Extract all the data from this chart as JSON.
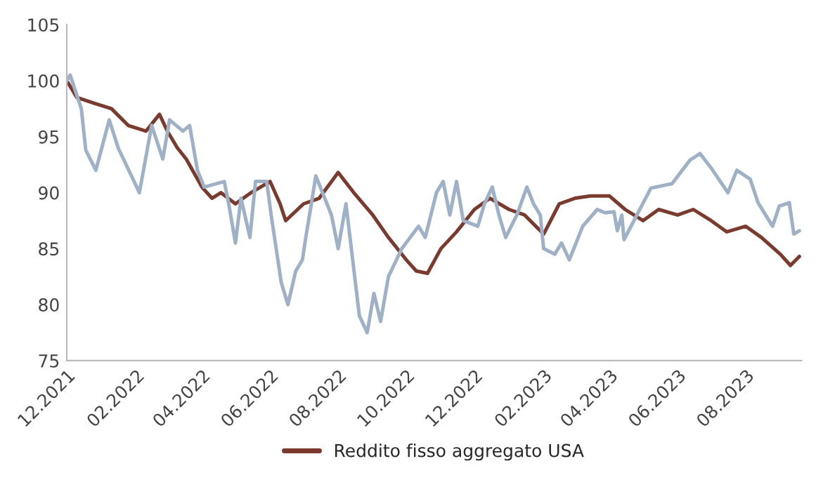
{
  "chart_data": {
    "type": "line",
    "xlim": [
      "2021-12-01",
      "2023-09-20"
    ],
    "xticks": [
      {
        "value": "2021-12-01",
        "label": "12.2021"
      },
      {
        "value": "2022-02-01",
        "label": "02.2022"
      },
      {
        "value": "2022-04-01",
        "label": "04.2022"
      },
      {
        "value": "2022-06-01",
        "label": "06.2022"
      },
      {
        "value": "2022-08-01",
        "label": "08.2022"
      },
      {
        "value": "2022-10-01",
        "label": "10.2022"
      },
      {
        "value": "2022-12-01",
        "label": "12.2022"
      },
      {
        "value": "2023-02-01",
        "label": "02.2023"
      },
      {
        "value": "2023-04-01",
        "label": "04.2023"
      },
      {
        "value": "2023-06-01",
        "label": "06.2023"
      },
      {
        "value": "2023-08-01",
        "label": "08.2023"
      }
    ],
    "ylim": [
      75,
      105
    ],
    "yticks": [
      75,
      80,
      85,
      90,
      95,
      100,
      105
    ],
    "grid": false,
    "legend": "bottom",
    "series": [
      {
        "name": "Reddito fisso aggregato USA",
        "color": "#7b3a2e",
        "x": [
          "2021-12-01",
          "2021-12-10",
          "2021-12-25",
          "2022-01-10",
          "2022-01-25",
          "2022-02-10",
          "2022-02-22",
          "2022-03-01",
          "2022-03-10",
          "2022-03-18",
          "2022-04-01",
          "2022-04-10",
          "2022-04-18",
          "2022-05-01",
          "2022-05-15",
          "2022-06-01",
          "2022-06-10",
          "2022-06-15",
          "2022-07-01",
          "2022-07-15",
          "2022-08-01",
          "2022-08-15",
          "2022-09-01",
          "2022-09-15",
          "2022-10-01",
          "2022-10-10",
          "2022-10-20",
          "2022-11-01",
          "2022-11-15",
          "2022-12-01",
          "2022-12-15",
          "2023-01-01",
          "2023-01-15",
          "2023-02-01",
          "2023-02-15",
          "2023-03-01",
          "2023-03-15",
          "2023-04-01",
          "2023-04-15",
          "2023-05-01",
          "2023-05-15",
          "2023-06-01",
          "2023-06-15",
          "2023-07-01",
          "2023-07-15",
          "2023-08-01",
          "2023-08-15",
          "2023-09-01",
          "2023-09-10",
          "2023-09-18"
        ],
        "values": [
          100,
          98.5,
          98,
          97.5,
          96,
          95.5,
          97,
          95.5,
          94,
          93,
          90.5,
          89.5,
          90,
          89,
          90,
          91,
          89,
          87.5,
          89,
          89.5,
          91.8,
          90,
          88,
          86,
          84,
          83,
          82.8,
          85,
          86.5,
          88.5,
          89.5,
          88.5,
          88,
          86.3,
          89,
          89.5,
          89.7,
          89.7,
          88.5,
          87.5,
          88.5,
          88,
          88.5,
          87.5,
          86.5,
          87,
          86,
          84.5,
          83.5,
          84.3
        ]
      },
      {
        "color": "#9fb1c6",
        "x": [
          "2021-12-01",
          "2021-12-04",
          "2021-12-14",
          "2021-12-18",
          "2021-12-27",
          "2022-01-08",
          "2022-01-16",
          "2022-02-04",
          "2022-02-15",
          "2022-02-25",
          "2022-03-03",
          "2022-03-15",
          "2022-03-21",
          "2022-03-28",
          "2022-04-03",
          "2022-04-21",
          "2022-04-25",
          "2022-05-01",
          "2022-05-06",
          "2022-05-14",
          "2022-05-19",
          "2022-05-29",
          "2022-06-02",
          "2022-06-11",
          "2022-06-17",
          "2022-06-24",
          "2022-06-30",
          "2022-07-03",
          "2022-07-08",
          "2022-07-12",
          "2022-07-26",
          "2022-08-01",
          "2022-08-08",
          "2022-08-14",
          "2022-08-20",
          "2022-08-27",
          "2022-09-02",
          "2022-09-08",
          "2022-09-15",
          "2022-09-27",
          "2022-10-12",
          "2022-10-18",
          "2022-10-28",
          "2022-11-03",
          "2022-11-09",
          "2022-11-15",
          "2022-11-21",
          "2022-12-04",
          "2022-12-10",
          "2022-12-17",
          "2022-12-23",
          "2022-12-29",
          "2023-01-08",
          "2023-01-17",
          "2023-01-23",
          "2023-01-29",
          "2023-02-01",
          "2023-02-11",
          "2023-02-17",
          "2023-02-24",
          "2023-03-08",
          "2023-03-21",
          "2023-03-28",
          "2023-04-05",
          "2023-04-08",
          "2023-04-12",
          "2023-04-14",
          "2023-05-08",
          "2023-05-27",
          "2023-06-12",
          "2023-06-21",
          "2023-07-01",
          "2023-07-16",
          "2023-07-24",
          "2023-08-05",
          "2023-08-12",
          "2023-08-25",
          "2023-08-31",
          "2023-09-09",
          "2023-09-13",
          "2023-09-18"
        ],
        "values": [
          100,
          100.5,
          97.5,
          93.8,
          92,
          96.5,
          94,
          90,
          96,
          93,
          96.5,
          95.5,
          96,
          92,
          90.5,
          91,
          89,
          85.5,
          89.5,
          86,
          91,
          91,
          88,
          82,
          80,
          83,
          84,
          86,
          89,
          91.5,
          88,
          85,
          89,
          84,
          79,
          77.5,
          81,
          78.5,
          82.5,
          85,
          87,
          86,
          90,
          91,
          88,
          91,
          87.5,
          87,
          89,
          90.5,
          88,
          86,
          88,
          90.5,
          89,
          88,
          85,
          84.5,
          85.5,
          84,
          87,
          88.5,
          88.2,
          88.3,
          86.6,
          88,
          85.8,
          90.4,
          90.8,
          92.9,
          93.5,
          92.2,
          90,
          92,
          91.2,
          89.1,
          87,
          88.8,
          89.1,
          86.3,
          86.6
        ]
      }
    ]
  }
}
